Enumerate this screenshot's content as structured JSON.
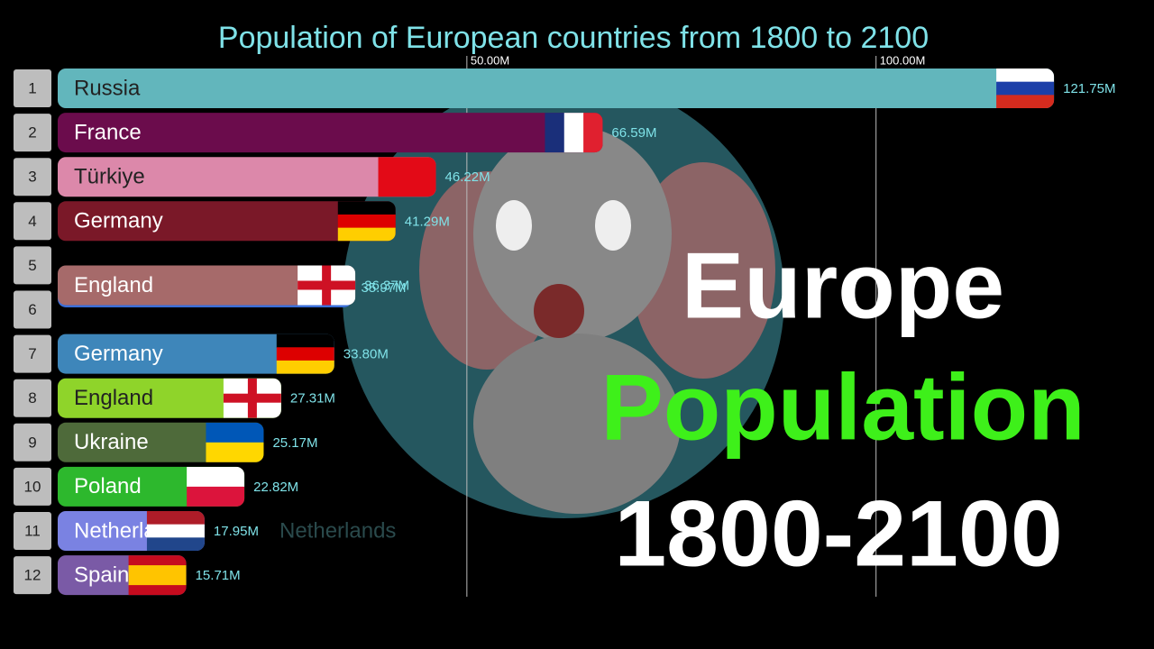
{
  "chart_data": {
    "type": "bar",
    "title": "Population of European countries from 1800 to 2100",
    "ranks": [
      1,
      2,
      3,
      4,
      5,
      6,
      7,
      8,
      9,
      10,
      11,
      12
    ],
    "categories": [
      "Russia",
      "France",
      "Türkiye",
      "Germany",
      "England",
      null,
      "Germany",
      "England",
      "Ukraine",
      "Poland",
      "Netherlands",
      "Spain"
    ],
    "values": [
      121.75,
      66.59,
      46.22,
      41.29,
      36.37,
      35.97,
      33.8,
      27.31,
      25.17,
      22.82,
      17.95,
      15.71
    ],
    "value_labels": [
      "121.75M",
      "66.59M",
      "46.22M",
      "41.29M",
      "36.37M",
      "35.97M",
      "33.80M",
      "27.31M",
      "25.17M",
      "22.82M",
      "17.95M",
      "15.71M"
    ],
    "colors": [
      "#62b6bc",
      "#6b0c4c",
      "#dc88aa",
      "#7a1828",
      "#a66a6a",
      "#3a6ed8",
      "#3e86ba",
      "#8fd42a",
      "#4e6a3a",
      "#2db82d",
      "#7a82e2",
      "#7a5aa6"
    ],
    "xlim": [
      0,
      130
    ],
    "xticks": [
      {
        "value": 50,
        "label": "50.00M"
      },
      {
        "value": 100,
        "label": "100.00M"
      }
    ],
    "grid": true,
    "annotations": [
      "Europe",
      "Population",
      "1800-2100"
    ]
  }
}
